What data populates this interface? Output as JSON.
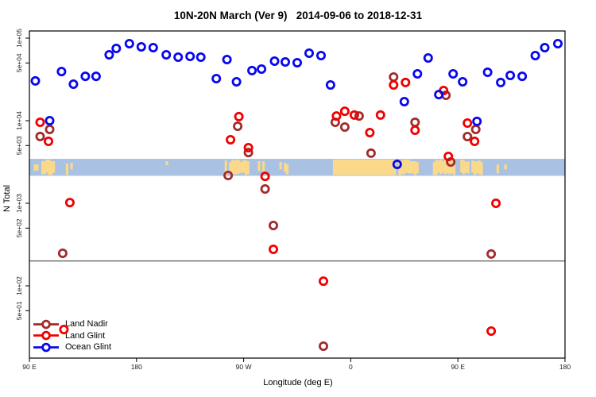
{
  "chart_data": {
    "type": "scatter",
    "title": "10N-20N March (Ver 9)   2014-09-06 to 2018-12-31",
    "xlabel": "Longitude (deg E)",
    "ylabel": "N Total",
    "x_axis": {
      "range_deg_east": [
        90,
        540
      ],
      "ticks": [
        {
          "lon": 90,
          "label": "90 E"
        },
        {
          "lon": 180,
          "label": "180"
        },
        {
          "lon": 270,
          "label": "90 W"
        },
        {
          "lon": 360,
          "label": "0"
        },
        {
          "lon": 450,
          "label": "90 E"
        },
        {
          "lon": 540,
          "label": "180"
        }
      ]
    },
    "y_axis": {
      "scale": "log",
      "range": [
        13,
        120000
      ],
      "ticks": [
        {
          "value": 100000,
          "label": "1e+05"
        },
        {
          "value": 50000,
          "label": "5e+04"
        },
        {
          "value": 10000,
          "label": "1e+04"
        },
        {
          "value": 5000,
          "label": "5e+03"
        },
        {
          "value": 1000,
          "label": "1e+03"
        },
        {
          "value": 500,
          "label": "5e+02"
        },
        {
          "value": 100,
          "label": "1e+02"
        },
        {
          "value": 50,
          "label": "5e+01"
        }
      ]
    },
    "threshold_line": {
      "value": 200,
      "color": "#333333"
    },
    "map_band": {
      "description": "10N-20N world coastline strip",
      "ocean_color": "#a9c2e3",
      "land_color": "#fbd98b",
      "value_top": 3450,
      "value_bottom": 2150,
      "land_patches": [
        {
          "lon0": 90,
          "lon1": 96,
          "style": "spotty"
        },
        {
          "lon0": 100,
          "lon1": 110,
          "style": "spotty-dense"
        },
        {
          "lon0": 115,
          "lon1": 125,
          "style": "spotty"
        },
        {
          "lon0": 204.5,
          "lon1": 206.5,
          "style": "dot"
        },
        {
          "lon0": 254,
          "lon1": 273,
          "style": "spotty-dense"
        },
        {
          "lon0": 280,
          "lon1": 291,
          "style": "spotty"
        },
        {
          "lon0": 300,
          "lon1": 306,
          "style": "spotty"
        },
        {
          "lon0": 345,
          "lon1": 398,
          "style": "solid"
        },
        {
          "lon0": 400,
          "lon1": 415,
          "style": "spotty-dense"
        },
        {
          "lon0": 429,
          "lon1": 447,
          "style": "spotty-dense"
        },
        {
          "lon0": 452,
          "lon1": 470,
          "style": "spotty-dense"
        },
        {
          "lon0": 475,
          "lon1": 486,
          "style": "spotty"
        },
        {
          "lon0": 489,
          "lon1": 496,
          "style": "spotty"
        }
      ]
    },
    "series": [
      {
        "name": "Land Nadir",
        "color": "#a12c2c",
        "marker": "open-circle",
        "points": [
          [
            99,
            6430
          ],
          [
            107,
            7830
          ],
          [
            118,
            248
          ],
          [
            257,
            2170
          ],
          [
            265,
            8570
          ],
          [
            274,
            4120
          ],
          [
            288,
            1490
          ],
          [
            295,
            538
          ],
          [
            337,
            18.6
          ],
          [
            347,
            9570
          ],
          [
            355,
            8370
          ],
          [
            367,
            11400
          ],
          [
            377,
            4040
          ],
          [
            396,
            33800
          ],
          [
            414,
            9570
          ],
          [
            440,
            20300
          ],
          [
            444,
            3160
          ],
          [
            458,
            6420
          ],
          [
            465,
            7830
          ],
          [
            478,
            243
          ]
        ]
      },
      {
        "name": "Land Glint",
        "color": "#f20000",
        "marker": "open-circle",
        "points": [
          [
            99,
            9570
          ],
          [
            106,
            5620
          ],
          [
            119,
            29.6
          ],
          [
            124,
            1020
          ],
          [
            259,
            5880
          ],
          [
            266,
            11200
          ],
          [
            274,
            4710
          ],
          [
            288,
            2120
          ],
          [
            295,
            277
          ],
          [
            337,
            114
          ],
          [
            348,
            11400
          ],
          [
            355,
            13000
          ],
          [
            363,
            11700
          ],
          [
            376,
            7180
          ],
          [
            385,
            11700
          ],
          [
            396,
            27100
          ],
          [
            406,
            29000
          ],
          [
            414,
            7670
          ],
          [
            438,
            23200
          ],
          [
            442,
            3690
          ],
          [
            458,
            9360
          ],
          [
            464,
            5620
          ],
          [
            478,
            28.3
          ],
          [
            482,
            1000
          ]
        ]
      },
      {
        "name": "Ocean Glint",
        "color": "#0808f0",
        "marker": "open-circle",
        "points": [
          [
            95,
            30300
          ],
          [
            107,
            10000
          ],
          [
            117,
            39400
          ],
          [
            127,
            27700
          ],
          [
            137,
            34500
          ],
          [
            146,
            34500
          ],
          [
            157,
            62800
          ],
          [
            163,
            75000
          ],
          [
            174,
            85700
          ],
          [
            184,
            78400
          ],
          [
            194,
            76700
          ],
          [
            205,
            62800
          ],
          [
            215,
            58800
          ],
          [
            225,
            60100
          ],
          [
            234,
            58800
          ],
          [
            247,
            32300
          ],
          [
            256,
            55000
          ],
          [
            264,
            29600
          ],
          [
            277,
            40400
          ],
          [
            285,
            42200
          ],
          [
            296,
            52600
          ],
          [
            305,
            51500
          ],
          [
            315,
            50300
          ],
          [
            325,
            65600
          ],
          [
            335,
            61400
          ],
          [
            343,
            27100
          ],
          [
            399,
            2960
          ],
          [
            405,
            17000
          ],
          [
            416,
            36900
          ],
          [
            425,
            57500
          ],
          [
            434,
            20700
          ],
          [
            446,
            36900
          ],
          [
            454,
            29600
          ],
          [
            466,
            9800
          ],
          [
            475,
            38600
          ],
          [
            486,
            29000
          ],
          [
            494,
            35300
          ],
          [
            504,
            34500
          ],
          [
            515,
            61400
          ],
          [
            523,
            76700
          ],
          [
            534,
            85700
          ]
        ]
      }
    ],
    "legend_position": "bottom-left"
  }
}
